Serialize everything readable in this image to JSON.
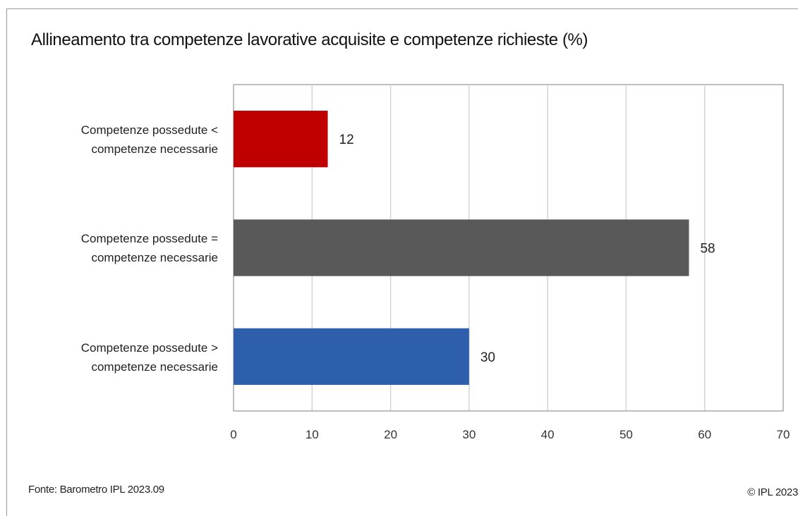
{
  "chart_data": {
    "type": "bar",
    "orientation": "horizontal",
    "title": "Allineamento tra competenze lavorative acquisite e competenze richieste (%)",
    "categories": [
      "Competenze possedute < competenze necessarie",
      "Competenze possedute = competenze necessarie",
      "Competenze possedute > competenze necessarie"
    ],
    "values": [
      12,
      58,
      30
    ],
    "colors": [
      "#c00000",
      "#595959",
      "#2e5fac"
    ],
    "xlim": [
      0,
      70
    ],
    "xticks": [
      0,
      10,
      20,
      30,
      40,
      50,
      60,
      70
    ],
    "grid": true,
    "xlabel": "",
    "ylabel": ""
  },
  "labels": {
    "cat1_line1": "Competenze possedute <",
    "cat1_line2": "competenze necessarie",
    "cat2_line1": "Competenze possedute =",
    "cat2_line2": "competenze necessarie",
    "cat3_line1": "Competenze possedute >",
    "cat3_line2": "competenze necessarie"
  },
  "footer": {
    "source": "Fonte: Barometro IPL 2023.09",
    "copyright": "© IPL 2023"
  }
}
